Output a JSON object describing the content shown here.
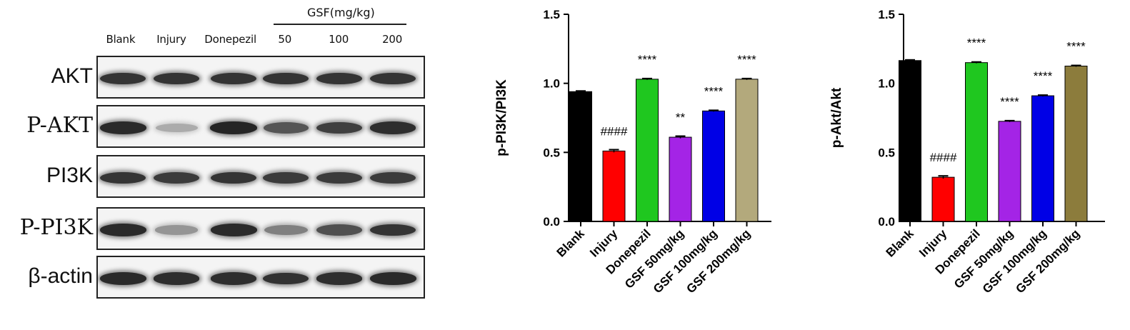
{
  "blot": {
    "gsf_header": "GSF(mg/kg)",
    "lanes": [
      "Blank",
      "Injury",
      "Donepezil",
      "50",
      "100",
      "200"
    ],
    "rows": [
      {
        "label": "AKT",
        "intensity": [
          0.85,
          0.85,
          0.85,
          0.85,
          0.85,
          0.85
        ]
      },
      {
        "label": "P-AKT",
        "intensity": [
          0.9,
          0.3,
          0.92,
          0.7,
          0.8,
          0.88
        ]
      },
      {
        "label": "PI3K",
        "intensity": [
          0.85,
          0.82,
          0.85,
          0.82,
          0.82,
          0.82
        ]
      },
      {
        "label": "P-PI3K",
        "intensity": [
          0.9,
          0.4,
          0.9,
          0.5,
          0.72,
          0.85
        ]
      },
      {
        "label": "β-actin",
        "intensity": [
          0.9,
          0.88,
          0.88,
          0.86,
          0.88,
          0.9
        ]
      }
    ]
  },
  "chart_data": [
    {
      "type": "bar",
      "ylabel": "p-PI3K/PI3K",
      "ylim": [
        0,
        1.5
      ],
      "yticks": [
        "0.0",
        "0.5",
        "1.0",
        "1.5"
      ],
      "categories": [
        "Blank",
        "Injury",
        "Donepezil",
        "GSF 50mg/kg",
        "GSF 100mg/kg",
        "GSF 200mg/kg"
      ],
      "values": [
        0.94,
        0.51,
        1.03,
        0.61,
        0.8,
        1.03
      ],
      "errors": [
        0.005,
        0.01,
        0.005,
        0.008,
        0.005,
        0.005
      ],
      "colors": [
        "#000000",
        "#ff0000",
        "#1fc71f",
        "#a424e6",
        "#0000e6",
        "#b3a97c"
      ],
      "annotations": [
        "",
        "####",
        "****",
        "**",
        "****",
        "****"
      ]
    },
    {
      "type": "bar",
      "ylabel": "p-Akt/Akt",
      "ylim": [
        0,
        1.5
      ],
      "yticks": [
        "0.0",
        "0.5",
        "1.0",
        "1.5"
      ],
      "categories": [
        "Blank",
        "Injury",
        "Donepezil",
        "GSF 50mg/kg",
        "GSF 100mg/kg",
        "GSF 200mg/kg"
      ],
      "values": [
        1.165,
        0.32,
        1.15,
        0.725,
        0.91,
        1.125
      ],
      "errors": [
        0.005,
        0.01,
        0.005,
        0.005,
        0.005,
        0.005
      ],
      "colors": [
        "#000000",
        "#ff0000",
        "#1fc71f",
        "#a424e6",
        "#0000e6",
        "#8c7c3c"
      ],
      "annotations": [
        "",
        "####",
        "****",
        "****",
        "****",
        "****"
      ]
    }
  ]
}
